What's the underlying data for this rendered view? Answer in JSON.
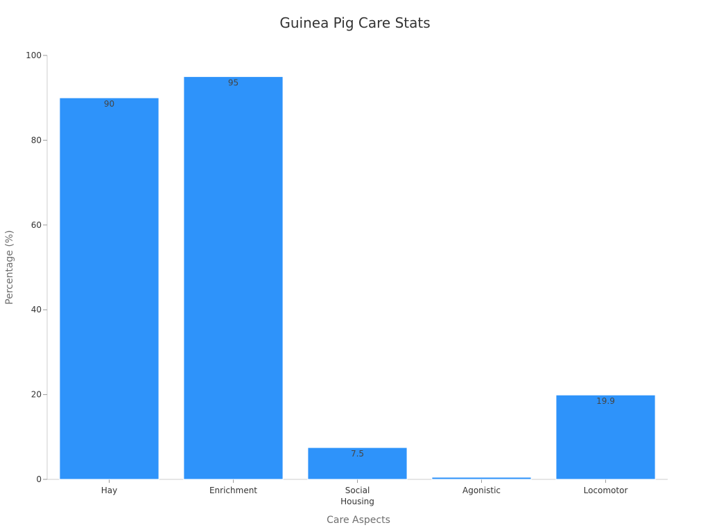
{
  "chart_data": {
    "type": "bar",
    "title": "Guinea Pig Care Stats",
    "xlabel": "Care Aspects",
    "ylabel": "Percentage (%)",
    "categories": [
      "Hay",
      "Enrichment",
      "Social\nHousing",
      "Agonistic",
      "Locomotor"
    ],
    "values": [
      90,
      95,
      7.5,
      0.5,
      19.9
    ],
    "data_labels": [
      "90",
      "95",
      "7.5",
      "",
      "19.9"
    ],
    "ylim": [
      0,
      100
    ],
    "yticks": [
      0,
      20,
      40,
      60,
      80,
      100
    ],
    "grid": false,
    "legend": "none",
    "bar_color": "#2e93fa"
  }
}
